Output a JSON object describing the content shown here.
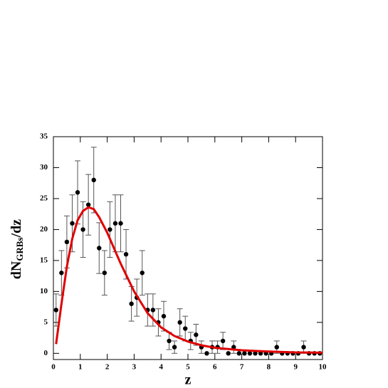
{
  "chart_data": {
    "type": "scatter",
    "xlabel": "z",
    "ylabel": [
      "dN",
      "GRBs",
      "/dz"
    ],
    "xlim": [
      0,
      10
    ],
    "ylim": [
      -1,
      35
    ],
    "xticks": [
      0,
      1,
      2,
      3,
      4,
      5,
      6,
      7,
      8,
      9,
      10
    ],
    "yticks": [
      0,
      5,
      10,
      15,
      20,
      25,
      30,
      35
    ],
    "series": [
      {
        "type": "scatter",
        "color": "#000000",
        "x": [
          0.1,
          0.3,
          0.5,
          0.7,
          0.9,
          1.1,
          1.3,
          1.5,
          1.7,
          1.9,
          2.1,
          2.3,
          2.5,
          2.7,
          2.9,
          3.1,
          3.3,
          3.5,
          3.7,
          3.9,
          4.1,
          4.3,
          4.5,
          4.7,
          4.9,
          5.1,
          5.3,
          5.5,
          5.7,
          5.9,
          6.1,
          6.3,
          6.5,
          6.7,
          6.9,
          7.1,
          7.3,
          7.5,
          7.7,
          7.9,
          8.1,
          8.3,
          8.5,
          8.7,
          8.9,
          9.1,
          9.3,
          9.5,
          9.7,
          9.9
        ],
        "values": [
          7,
          13,
          18,
          21,
          26,
          20,
          24,
          28,
          17,
          13,
          20,
          21,
          21,
          16,
          8,
          9,
          13,
          7,
          7,
          5,
          6,
          2,
          1,
          5,
          4,
          2,
          3,
          1,
          0,
          1,
          1,
          2,
          0,
          1,
          0,
          0,
          0,
          0,
          0,
          0,
          0,
          1,
          0,
          0,
          0,
          0,
          1,
          0,
          0,
          0
        ],
        "errors": [
          2.6,
          3.6,
          4.2,
          4.6,
          5.1,
          4.5,
          4.9,
          5.3,
          4.1,
          3.6,
          4.5,
          4.6,
          4.6,
          4,
          2.8,
          3,
          3.6,
          2.6,
          2.6,
          2.2,
          2.4,
          1.4,
          1,
          2.2,
          2,
          1.4,
          1.7,
          1,
          0,
          1,
          1,
          1.4,
          0,
          1,
          0,
          0,
          0,
          0,
          0,
          0,
          0,
          1,
          0,
          0,
          0,
          0,
          1,
          0,
          0,
          0
        ]
      },
      {
        "type": "line",
        "color": "#e00000",
        "x": [
          0.1,
          0.3,
          0.5,
          0.7,
          0.9,
          1.1,
          1.3,
          1.5,
          1.7,
          2.0,
          2.5,
          3.0,
          3.5,
          4.0,
          4.5,
          5.0,
          5.5,
          6.0,
          7.0,
          8.0,
          9.0,
          10.0
        ],
        "values": [
          1.5,
          8,
          14,
          18.5,
          21.5,
          23,
          23.6,
          23.3,
          22,
          19.5,
          14.5,
          10,
          6.5,
          4.2,
          2.8,
          1.9,
          1.3,
          0.9,
          0.5,
          0.3,
          0.15,
          0.1
        ]
      }
    ]
  }
}
